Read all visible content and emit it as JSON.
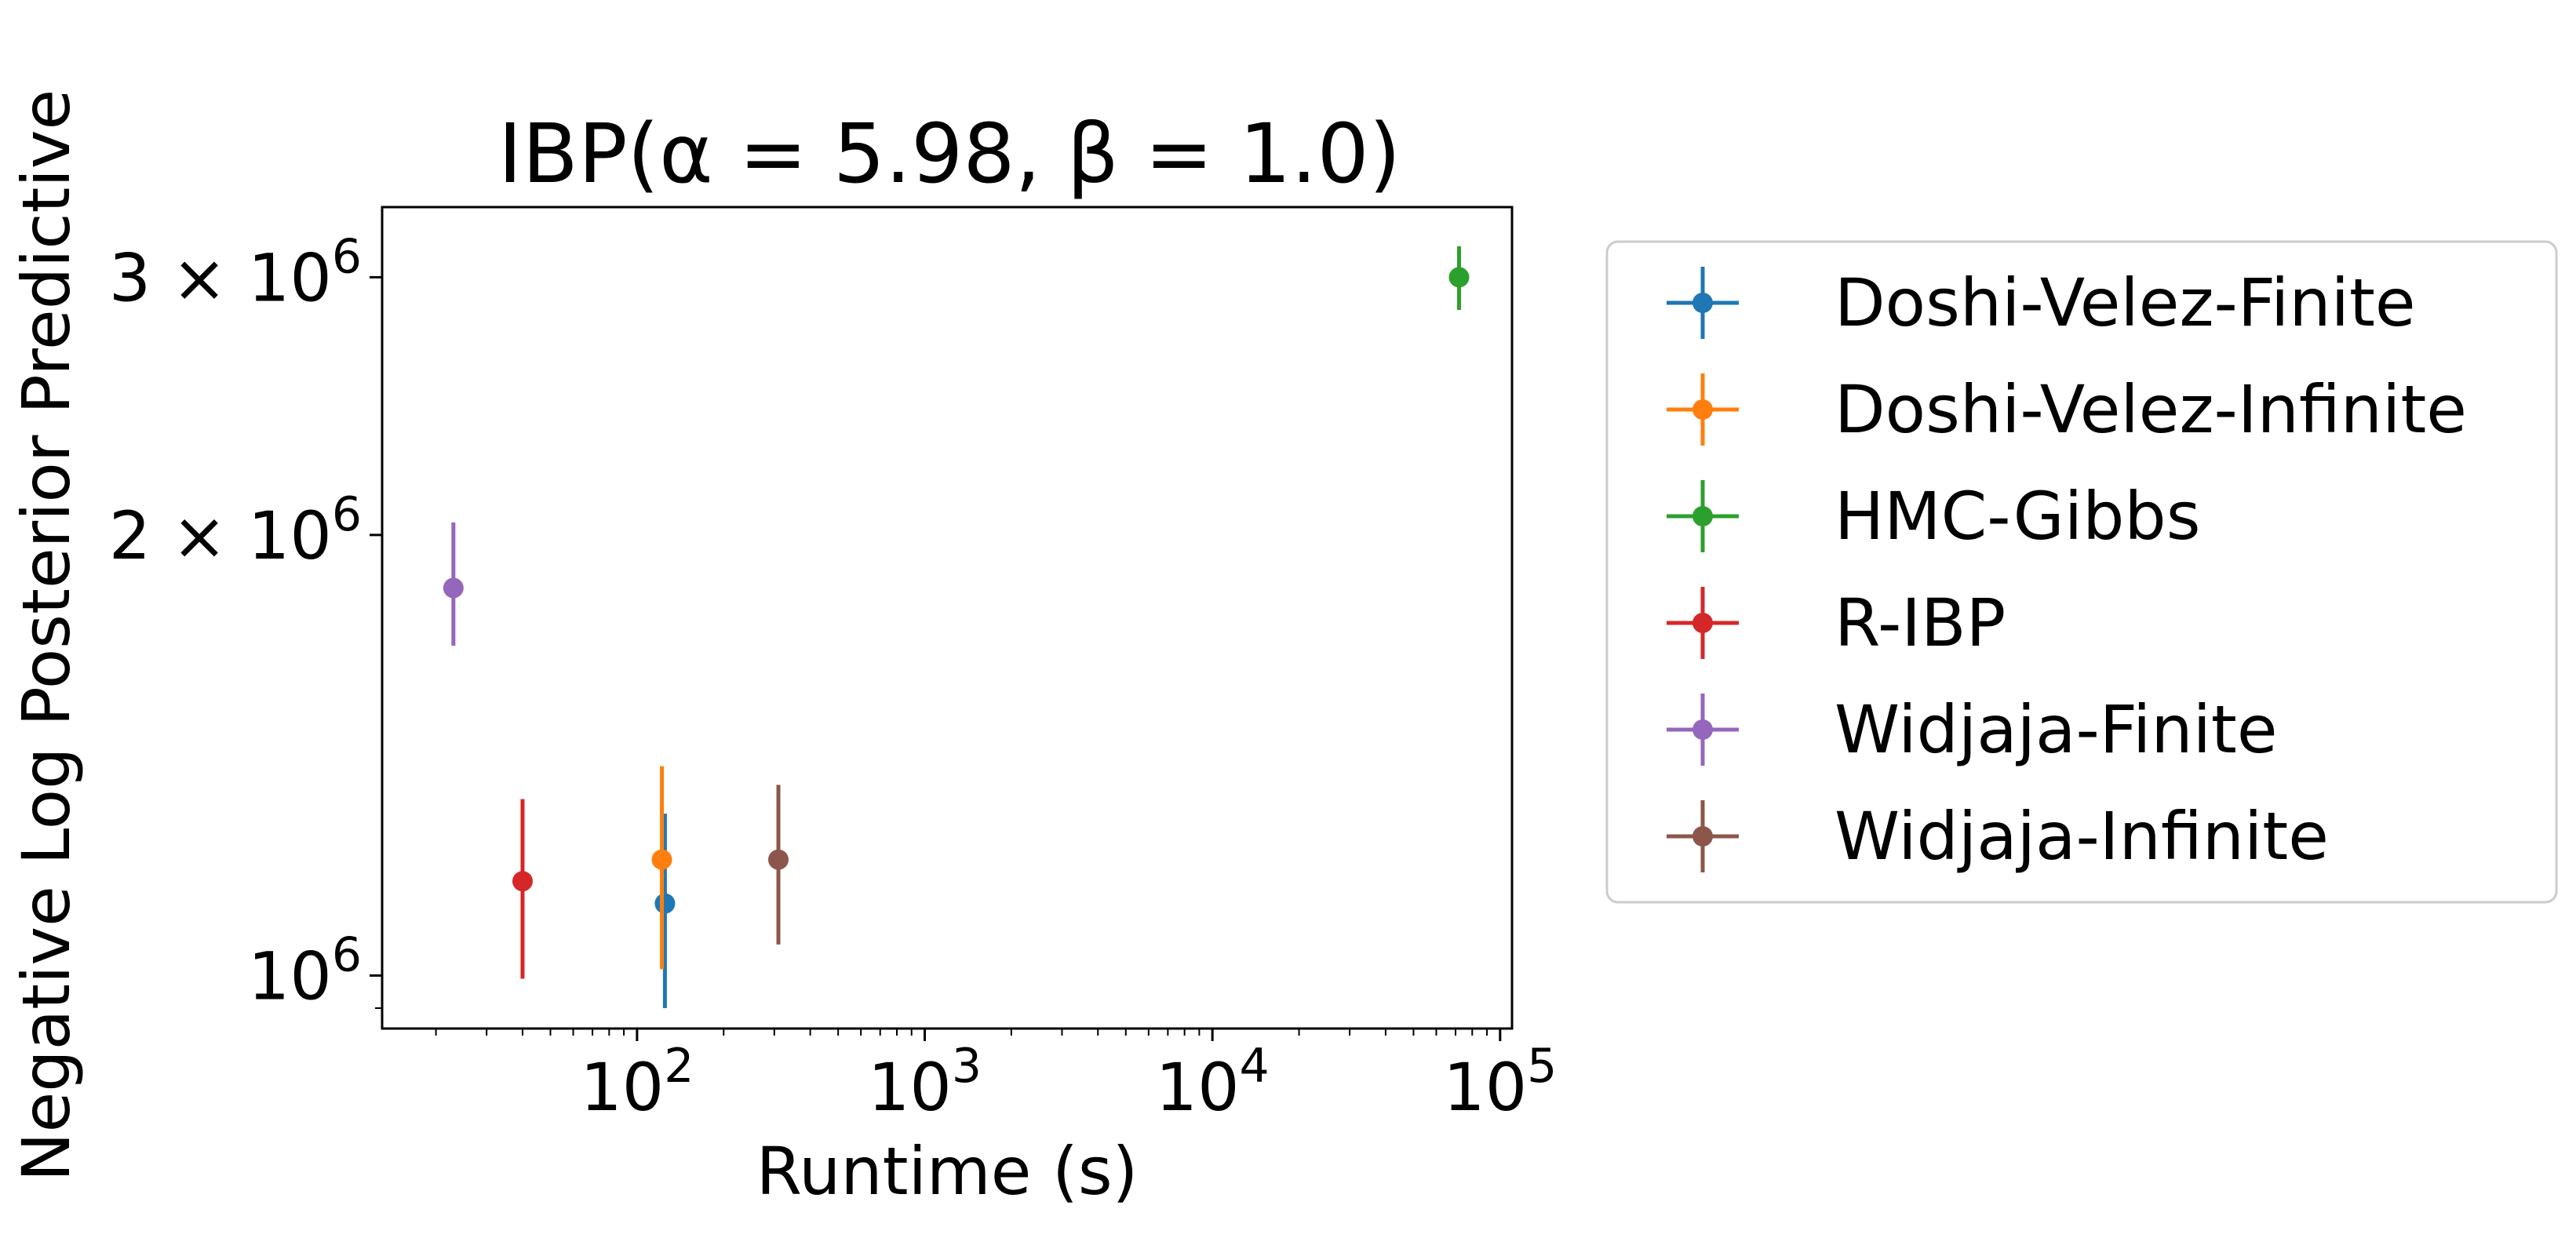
{
  "chart_data": {
    "type": "scatter",
    "title": "IBP(α = 5.98, β = 1.0)",
    "xlabel": "Runtime (s)",
    "ylabel": "Negative Log Posterior Predictive",
    "xscale": "log",
    "yscale": "log",
    "xlim": [
      13,
      110000
    ],
    "ylim": [
      920000,
      3350000
    ],
    "x_ticks": [
      {
        "value": 100,
        "base": "10",
        "exp": "2"
      },
      {
        "value": 1000,
        "base": "10",
        "exp": "3"
      },
      {
        "value": 10000,
        "base": "10",
        "exp": "4"
      },
      {
        "value": 100000,
        "base": "10",
        "exp": "5"
      }
    ],
    "y_ticks": [
      {
        "value": 1000000,
        "base": "10",
        "exp": "6"
      },
      {
        "value": 2000000,
        "base": "2 × 10",
        "exp": "6"
      },
      {
        "value": 3000000,
        "base": "3 × 10",
        "exp": "6"
      }
    ],
    "grid": false,
    "legend_position": "outside-right",
    "series": [
      {
        "name": "Doshi-Velez-Finite",
        "color": "#1f77b4",
        "x": 125,
        "y": 1120000,
        "yerr_low": 950000,
        "yerr_high": 1290000
      },
      {
        "name": "Doshi-Velez-Infinite",
        "color": "#ff7f0e",
        "x": 122,
        "y": 1200000,
        "yerr_low": 1010000,
        "yerr_high": 1390000
      },
      {
        "name": "HMC-Gibbs",
        "color": "#2ca02c",
        "x": 72000,
        "y": 3000000,
        "yerr_low": 2850000,
        "yerr_high": 3150000
      },
      {
        "name": "R-IBP",
        "color": "#d62728",
        "x": 40,
        "y": 1160000,
        "yerr_low": 995000,
        "yerr_high": 1320000
      },
      {
        "name": "Widjaja-Finite",
        "color": "#9467bd",
        "x": 23,
        "y": 1840000,
        "yerr_low": 1680000,
        "yerr_high": 2040000
      },
      {
        "name": "Widjaja-Infinite",
        "color": "#8c564b",
        "x": 310,
        "y": 1200000,
        "yerr_low": 1050000,
        "yerr_high": 1350000
      }
    ]
  }
}
